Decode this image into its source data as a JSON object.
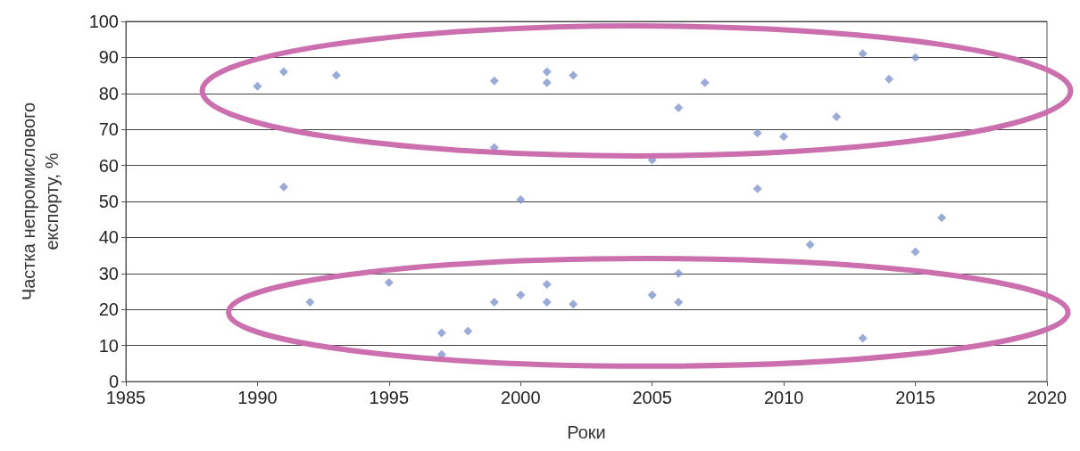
{
  "chart_data": {
    "type": "scatter",
    "xlabel": "Роки",
    "ylabel": "Частка непромислового\nекспорту, %",
    "x": [
      1990,
      1991,
      1991,
      1992,
      1993,
      1995,
      1997,
      1997,
      1998,
      1999,
      1999,
      1999,
      2000,
      2000,
      2001,
      2001,
      2001,
      2001,
      2002,
      2002,
      2005,
      2005,
      2006,
      2006,
      2006,
      2007,
      2009,
      2009,
      2010,
      2011,
      2012,
      2013,
      2013,
      2014,
      2015,
      2015,
      2016
    ],
    "values": [
      82,
      86,
      54,
      22,
      85,
      27.5,
      13.5,
      7.5,
      14,
      83.5,
      65,
      22,
      50.5,
      24,
      86,
      83,
      27,
      22,
      85,
      21.5,
      61.5,
      24,
      76,
      30,
      22,
      83,
      69,
      53.5,
      68,
      38,
      73.5,
      91,
      12,
      84,
      90,
      36,
      45.5
    ],
    "color": "#8096cc",
    "marker": "diamond",
    "xlim": [
      1985,
      2020
    ],
    "xticks": [
      1985,
      1990,
      1995,
      2000,
      2005,
      2010,
      2015,
      2020
    ],
    "ylim": [
      0,
      100
    ],
    "yticks": [
      0,
      10,
      20,
      30,
      40,
      50,
      60,
      70,
      80,
      90,
      100
    ],
    "grid": "y"
  }
}
